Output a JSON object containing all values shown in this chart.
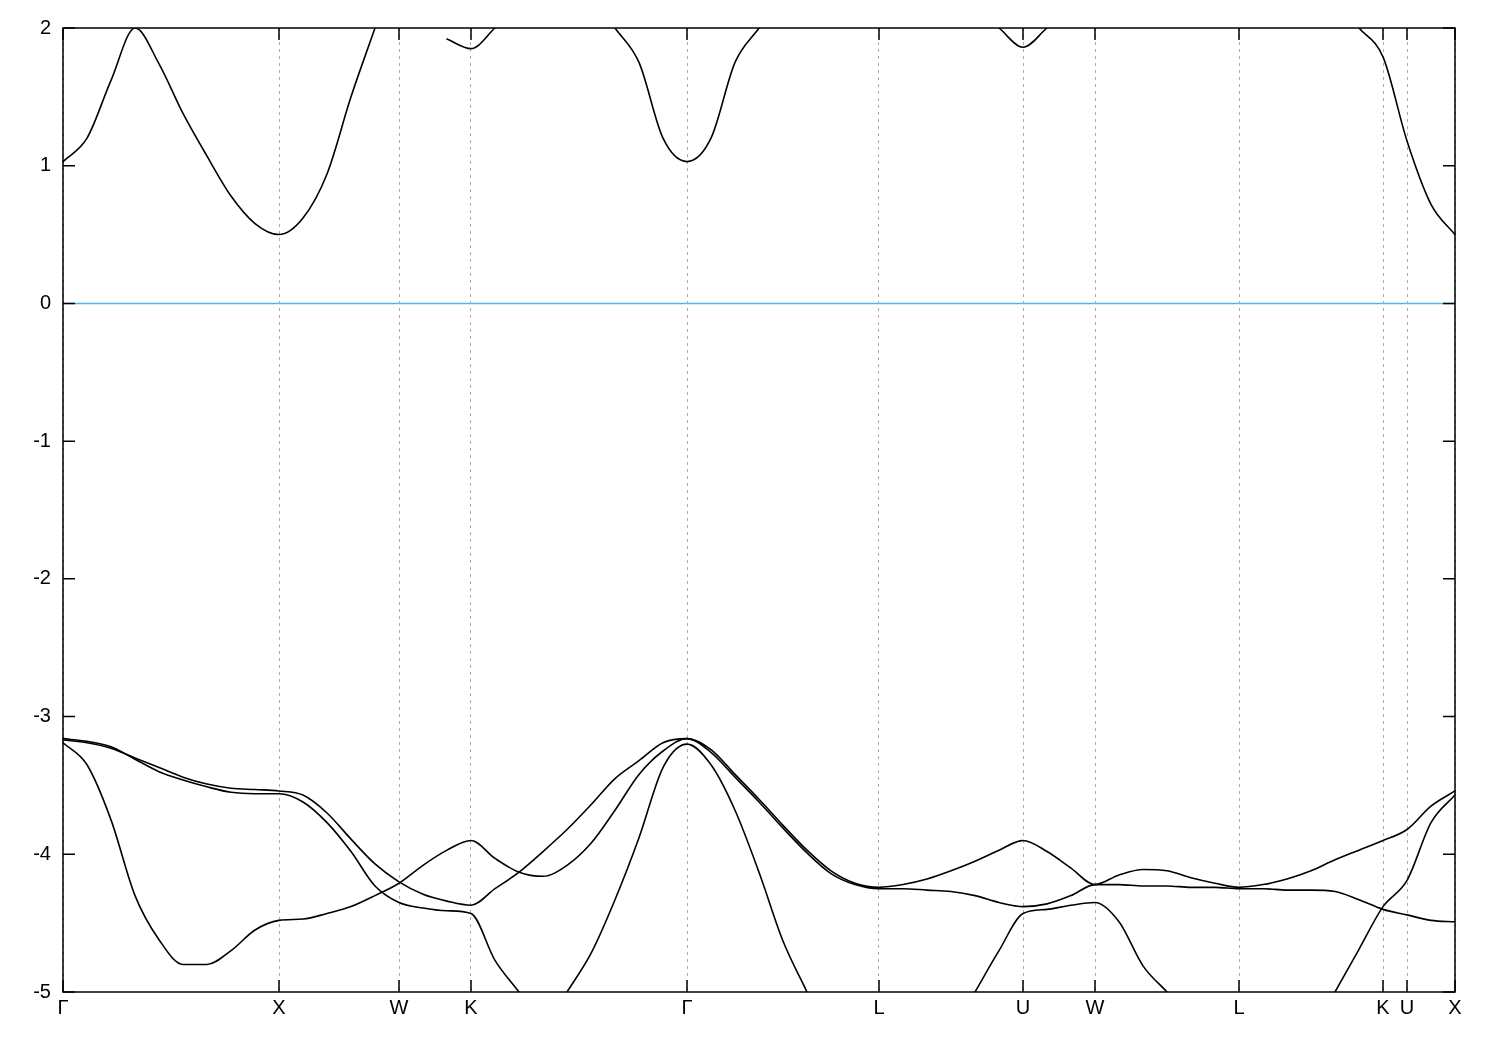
{
  "chart_data": {
    "type": "line",
    "ylim": [
      -5,
      2
    ],
    "categories": [
      "Γ",
      null,
      null,
      null,
      null,
      null,
      null,
      null,
      null,
      "X",
      null,
      null,
      null,
      null,
      "W",
      null,
      null,
      "K",
      null,
      null,
      null,
      null,
      null,
      null,
      null,
      null,
      "Γ",
      null,
      null,
      null,
      null,
      null,
      null,
      null,
      "L",
      null,
      null,
      null,
      null,
      null,
      "U",
      null,
      null,
      "W",
      null,
      null,
      null,
      null,
      null,
      "L",
      null,
      null,
      null,
      null,
      null,
      "K",
      "U",
      null,
      "X"
    ],
    "yticks": [
      -5,
      -4,
      -3,
      -2,
      -1,
      0,
      1,
      2
    ],
    "grid": "x",
    "ref_lines": [
      {
        "axis": "y",
        "value": 0,
        "color": "#56b4e9"
      }
    ],
    "series": [
      {
        "color": "#000000",
        "values": [
          -3.19,
          -3.35,
          -3.75,
          -4.3,
          -4.62,
          -4.8,
          -4.8,
          -4.7,
          -4.55,
          -4.48,
          -4.47,
          -4.43,
          -4.38,
          -4.3,
          -4.21,
          -4.08,
          -3.97,
          -3.9,
          -4.03,
          -4.13,
          -4.16,
          -4.08,
          -3.92,
          -3.68,
          -3.42,
          -3.25,
          -3.16,
          -3.24,
          -3.42,
          -3.6,
          -3.79,
          -3.97,
          -4.12,
          -4.21,
          -4.24,
          -4.22,
          -4.18,
          -4.12,
          -4.05,
          -3.97,
          -3.9,
          -3.98,
          -4.1,
          -4.22,
          -4.15,
          -4.11,
          -4.12,
          -4.17,
          -4.21,
          -4.24,
          -4.22,
          -4.18,
          -4.12,
          -4.04,
          -3.97,
          -3.9,
          -3.82,
          -3.65,
          -3.54
        ]
      },
      {
        "color": "#000000",
        "values": [
          -3.16,
          -3.18,
          -3.22,
          -3.31,
          -3.4,
          -3.46,
          -3.51,
          -3.55,
          -3.56,
          -3.56,
          -3.62,
          -3.77,
          -3.98,
          -4.23,
          -4.35,
          -4.39,
          -4.41,
          -4.43,
          -4.77,
          -5.0,
          null,
          -5.0,
          -4.72,
          -4.33,
          -3.88,
          -3.37,
          -3.2,
          -3.35,
          -3.68,
          -4.13,
          -4.63,
          -5.0,
          null,
          null,
          null,
          null,
          null,
          null,
          -5.0,
          -4.7,
          -4.43,
          -4.4,
          -4.37,
          -4.35,
          -4.49,
          -4.81,
          -5.0,
          null,
          null,
          null,
          null,
          null,
          null,
          -5.0,
          -4.69,
          -4.38,
          -4.19,
          -3.77,
          -3.57
        ]
      },
      {
        "color": "#000000",
        "values": [
          -3.17,
          -3.19,
          -3.23,
          -3.3,
          -3.37,
          -3.44,
          -3.49,
          -3.52,
          -3.53,
          -3.54,
          -3.57,
          -3.7,
          -3.89,
          -4.07,
          -4.2,
          -4.29,
          -4.34,
          -4.37,
          -4.25,
          -4.13,
          -3.98,
          -3.82,
          -3.64,
          -3.45,
          -3.32,
          -3.19,
          -3.16,
          -3.26,
          -3.44,
          -3.62,
          -3.81,
          -3.99,
          -4.14,
          -4.22,
          -4.25,
          -4.25,
          -4.26,
          -4.27,
          -4.3,
          -4.35,
          -4.38,
          -4.36,
          -4.3,
          -4.22,
          -4.22,
          -4.23,
          -4.23,
          -4.24,
          -4.24,
          -4.25,
          -4.25,
          -4.26,
          -4.26,
          -4.27,
          -4.33,
          -4.4,
          -4.44,
          -4.48,
          -4.49
        ]
      },
      {
        "color": "#000000",
        "values": [
          1.03,
          1.2,
          1.62,
          2.0,
          1.74,
          1.38,
          1.07,
          0.78,
          0.58,
          0.5,
          0.62,
          0.94,
          1.5,
          2.0,
          null,
          null,
          1.92,
          1.85,
          2.0,
          null,
          null,
          null,
          null,
          2.0,
          1.75,
          1.2,
          1.03,
          1.2,
          1.75,
          2.0,
          null,
          null,
          null,
          null,
          null,
          null,
          null,
          null,
          null,
          2.0,
          1.86,
          2.0,
          null,
          null,
          null,
          null,
          null,
          null,
          null,
          null,
          null,
          null,
          null,
          null,
          2.0,
          1.79,
          1.18,
          0.72,
          0.5
        ]
      }
    ]
  }
}
